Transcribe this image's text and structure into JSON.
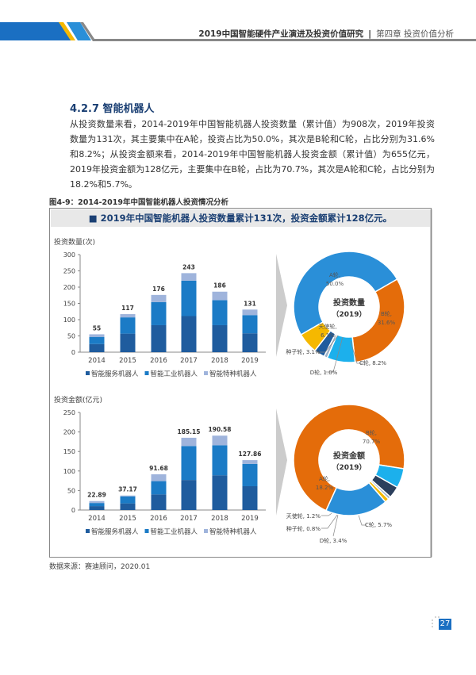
{
  "header": {
    "title": "2019中国智能硬件产业演进及投资价值研究",
    "separator": "|",
    "chapter": "第四章 投资价值分析"
  },
  "section_title": "4.2.7 智能机器人",
  "paragraph": "从投资数量来看，2014-2019年中国智能机器人投资数量（累计值）为908次，2019年投资数量为131次，其主要集中在A轮，投资占比为50.0%，其次是B轮和C轮，占比分别为31.6%和8.2%；从投资金额来看，2014-2019年中国智能机器人投资金额（累计值）为655亿元，2019年投资金额为128亿元，主要集中在B轮，占比为70.7%，其次是A轮和C轮，占比分别为18.2%和5.7%。",
  "figure_caption": "图4-9：2014-2019年中国智能机器人投资情况分析",
  "banner": "■ 2019年中国智能机器人投资数量累计131次，投资金额累计128亿元。",
  "source": "数据来源：赛迪顾问，2020.01",
  "page_number": "27",
  "colors": {
    "service": "#1f5c9e",
    "industrial": "#1b7bc6",
    "special": "#9fb4dc",
    "brand_blue": "#1a6fc2",
    "yellow": "#f5b800"
  },
  "chart_data": [
    {
      "type": "bar",
      "stacked": true,
      "ylabel": "投资数量(次)",
      "ylim": [
        0,
        300
      ],
      "yticks": [
        0,
        50,
        100,
        150,
        200,
        250,
        300
      ],
      "categories": [
        "2014",
        "2015",
        "2016",
        "2017",
        "2018",
        "2019"
      ],
      "totals": [
        "55",
        "117",
        "176",
        "243",
        "186",
        "131"
      ],
      "series": [
        {
          "name": "智能服务机器人",
          "values": [
            25,
            57,
            83,
            111,
            83,
            58
          ]
        },
        {
          "name": "智能工业机器人",
          "values": [
            22,
            50,
            71,
            109,
            77,
            56
          ]
        },
        {
          "name": "智能特种机器人",
          "values": [
            8,
            10,
            22,
            23,
            26,
            17
          ]
        }
      ],
      "legend": "bottom",
      "grid": false
    },
    {
      "type": "bar",
      "stacked": true,
      "ylabel": "投资金额(亿元)",
      "ylim": [
        0,
        250
      ],
      "yticks": [
        0,
        50,
        100,
        150,
        200,
        250
      ],
      "categories": [
        "2014",
        "2015",
        "2016",
        "2017",
        "2018",
        "2019"
      ],
      "totals": [
        "22.89",
        "37.17",
        "91.68",
        "185.15",
        "190.58",
        "127.86"
      ],
      "series": [
        {
          "name": "智能服务机器人",
          "values": [
            10,
            17,
            40,
            77,
            89,
            61
          ]
        },
        {
          "name": "智能工业机器人",
          "values": [
            8,
            18,
            34,
            87,
            77,
            57
          ]
        },
        {
          "name": "智能特种机器人",
          "values": [
            4.89,
            2.17,
            17.68,
            21.15,
            24.58,
            9.86
          ]
        }
      ],
      "legend": "bottom",
      "grid": false
    },
    {
      "type": "pie",
      "donut": true,
      "center_title": "投资数量",
      "center_sub": "（2019）",
      "slices": [
        {
          "name": "A轮",
          "value": 50.0,
          "label": "A轮,\n50.0%",
          "color": "#2a8fd8"
        },
        {
          "name": "B轮",
          "value": 31.6,
          "label": "B轮,\n31.6%",
          "color": "#e46c0a"
        },
        {
          "name": "C轮",
          "value": 8.2,
          "label": "C轮, 8.2%",
          "color": "#1cb0ec"
        },
        {
          "name": "D轮",
          "value": 1.0,
          "label": "D轮, 1.0%",
          "color": "#9ab0c8"
        },
        {
          "name": "种子轮",
          "value": 3.1,
          "label": "种子轮, 3.1%",
          "color": "#1f5c9e"
        },
        {
          "name": "天使轮",
          "value": 6.1,
          "label": "天使轮,\n6.1%",
          "color": "#f5b800"
        }
      ]
    },
    {
      "type": "pie",
      "donut": true,
      "center_title": "投资金额",
      "center_sub": "（2019）",
      "slices": [
        {
          "name": "B轮",
          "value": 70.7,
          "label": "B轮,\n70.7%",
          "color": "#e46c0a"
        },
        {
          "name": "C轮",
          "value": 5.7,
          "label": "C轮, 5.7%",
          "color": "#1cb0ec"
        },
        {
          "name": "D轮",
          "value": 3.4,
          "label": "D轮, 3.4%",
          "color": "#2b3f5c"
        },
        {
          "name": "种子轮",
          "value": 0.8,
          "label": "种子轮, 0.8%",
          "color": "#9ab0c8"
        },
        {
          "name": "天使轮",
          "value": 1.2,
          "label": "天使轮, 1.2%",
          "color": "#f5b800"
        },
        {
          "name": "A轮",
          "value": 18.2,
          "label": "A轮,\n18.2%",
          "color": "#2a8fd8"
        }
      ]
    }
  ]
}
